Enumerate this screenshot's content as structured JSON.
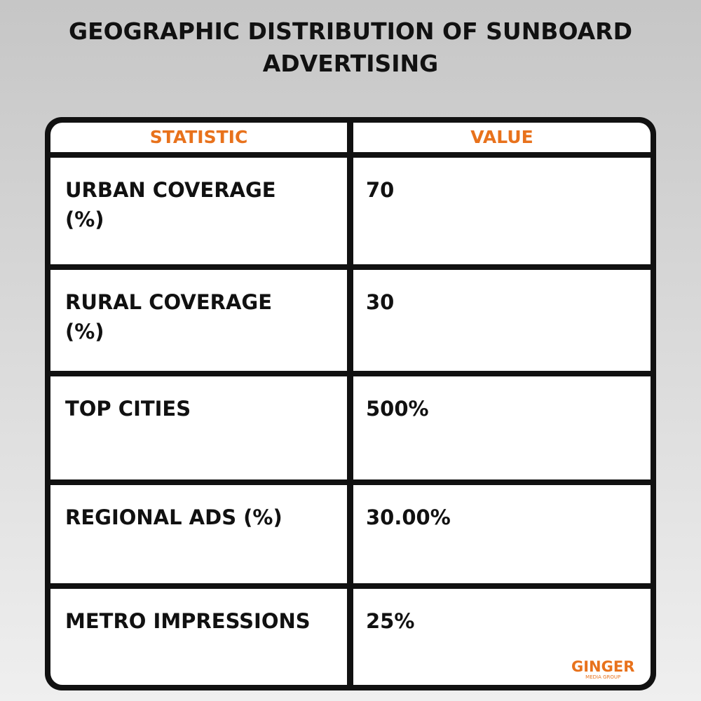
{
  "header": {
    "title": "GEOGRAPHIC DISTRIBUTION OF SUNBOARD ADVERTISING"
  },
  "table": {
    "columns": [
      "STATISTIC",
      "VALUE"
    ],
    "rows": [
      [
        "URBAN COVERAGE (%)",
        "70"
      ],
      [
        "RURAL COVERAGE (%)",
        "30"
      ],
      [
        "TOP CITIES",
        "500%"
      ],
      [
        "REGIONAL ADS (%)",
        "30.00%"
      ],
      [
        "METRO IMPRESSIONS",
        "25%"
      ]
    ]
  },
  "logo": {
    "name": "GINGER",
    "tagline": "MEDIA GROUP"
  }
}
